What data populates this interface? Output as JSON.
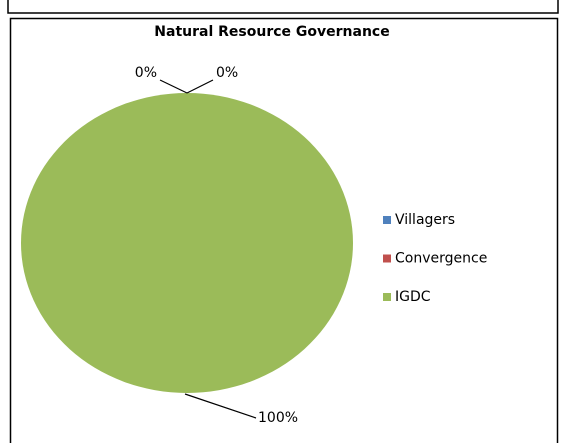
{
  "chart_data": {
    "type": "pie",
    "title": "Natural Resource Governance",
    "categories": [
      "Villagers",
      "Convergence",
      "IGDC"
    ],
    "values": [
      0,
      0,
      100
    ],
    "value_labels": [
      "0%",
      "0%",
      "100%"
    ],
    "colors": [
      "#4f81bd",
      "#c0504d",
      "#9bbb59"
    ],
    "legend": "right"
  }
}
